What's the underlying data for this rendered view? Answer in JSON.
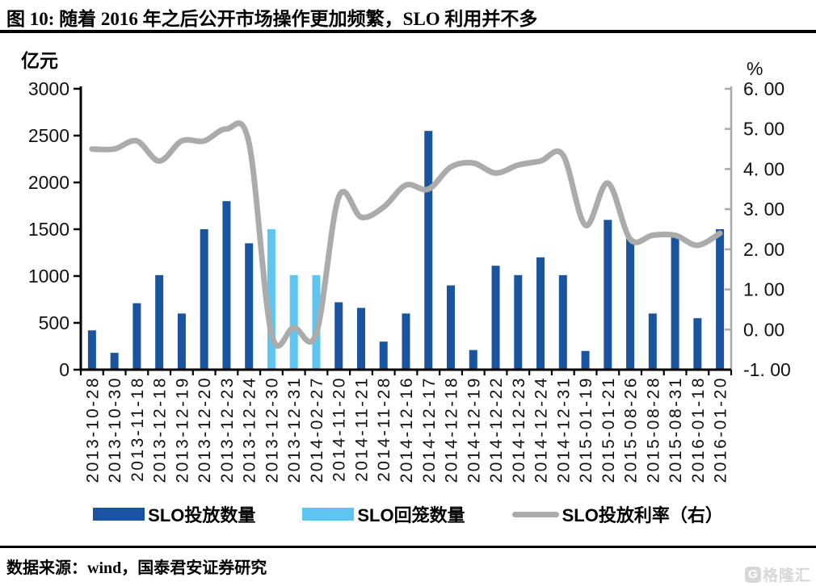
{
  "header": {
    "title": "图 10:  随着 2016 年之后公开市场操作更加频繁，SLO 利用并不多"
  },
  "chart_data": {
    "type": "bar+line",
    "title": "图 10:  随着 2016 年之后公开市场操作更加频繁，SLO 利用并不多",
    "categories": [
      "2013-10-28",
      "2013-10-30",
      "2013-11-18",
      "2013-12-18",
      "2013-12-19",
      "2013-12-20",
      "2013-12-23",
      "2013-12-24",
      "2013-12-30",
      "2013-12-31",
      "2014-02-27",
      "2014-11-20",
      "2014-11-21",
      "2014-11-28",
      "2014-12-16",
      "2014-12-17",
      "2014-12-18",
      "2014-12-19",
      "2014-12-22",
      "2014-12-23",
      "2014-12-24",
      "2014-12-31",
      "2015-01-19",
      "2015-01-21",
      "2015-08-26",
      "2015-08-28",
      "2015-08-31",
      "2016-01-18",
      "2016-01-20"
    ],
    "left_axis": {
      "unit": "亿元",
      "min": 0,
      "max": 3000,
      "tick_step": 500,
      "ticks": [
        "0",
        "500",
        "1000",
        "1500",
        "2000",
        "2500",
        "3000"
      ]
    },
    "right_axis": {
      "unit": "%",
      "min": -1,
      "max": 6,
      "tick_step": 1,
      "ticks": [
        "-1. 00",
        "0. 00",
        "1. 00",
        "2. 00",
        "3. 00",
        "4. 00",
        "5. 00",
        "6. 00"
      ]
    },
    "series": [
      {
        "name": "SLO投放数量",
        "type": "bar",
        "axis": "left",
        "color": "#1A549E",
        "values": [
          420,
          180,
          710,
          1010,
          600,
          1500,
          1800,
          1350,
          null,
          null,
          null,
          720,
          660,
          300,
          600,
          2550,
          900,
          210,
          1110,
          1010,
          1200,
          1010,
          200,
          1600,
          1400,
          600,
          1430,
          550,
          1500
        ]
      },
      {
        "name": "SLO回笼数量",
        "type": "bar",
        "axis": "left",
        "color": "#5EC5F1",
        "values": [
          null,
          null,
          null,
          null,
          null,
          null,
          null,
          null,
          1500,
          1010,
          1010,
          null,
          null,
          null,
          null,
          null,
          null,
          null,
          null,
          null,
          null,
          null,
          null,
          null,
          null,
          null,
          null,
          null,
          null
        ]
      },
      {
        "name": "SLO投放利率（右）",
        "type": "line",
        "axis": "right",
        "color": "#ABABAB",
        "values": [
          4.5,
          4.5,
          4.7,
          4.2,
          4.7,
          4.7,
          5.0,
          4.65,
          -0.1,
          0.05,
          -0.1,
          3.3,
          2.8,
          3.05,
          3.6,
          3.5,
          4.05,
          4.15,
          3.9,
          4.1,
          4.2,
          4.35,
          2.6,
          3.65,
          2.25,
          2.35,
          2.35,
          2.1,
          2.4
        ]
      }
    ],
    "legend_position": "bottom",
    "grid": false,
    "axis_colors": {
      "left": "#000000",
      "right": "#A9A9A9",
      "tick_label": "#111111"
    }
  },
  "footer": {
    "source": "数据来源：wind，国泰君安证券研究"
  },
  "watermark": {
    "brand": "格隆汇",
    "icon_letter": "G"
  }
}
